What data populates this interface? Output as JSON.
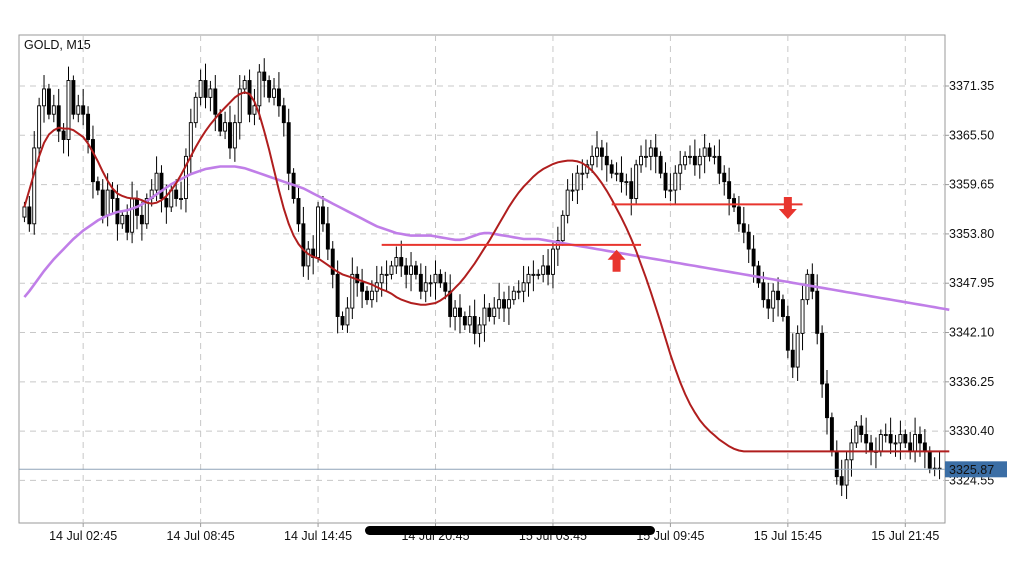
{
  "chart_data": {
    "type": "candlestick",
    "title": "GOLD, M15",
    "ylim": [
      3319.5,
      3377.4
    ],
    "y_ticks": [
      3371.35,
      3365.5,
      3359.65,
      3353.8,
      3347.95,
      3342.1,
      3336.25,
      3330.4,
      3324.55
    ],
    "y_tick_labels": [
      "3371.35",
      "3365.50",
      "3359.65",
      "3353.80",
      "3347.95",
      "3342.10",
      "3336.25",
      "3330.40",
      "3324.55"
    ],
    "x_tick_labels": [
      "14 Jul 02:45",
      "14 Jul 08:45",
      "14 Jul 14:45",
      "14 Jul 20:45",
      "15 Jul 03:45",
      "15 Jul 09:45",
      "15 Jul 15:45",
      "15 Jul 21:45"
    ],
    "x_tick_bars": [
      12,
      36,
      60,
      84,
      108,
      132,
      156,
      180
    ],
    "current_price": 3325.87,
    "current_price_label": "3325.87",
    "grid": true,
    "colors": {
      "bull_body": "#ffffff",
      "bear_body": "#000000",
      "candle_outline": "#000000",
      "ma_fast": "#b01e1e",
      "ma_slow": "#c07ee8",
      "level_lines": "#e8352e",
      "signal_arrows": "#e8352e",
      "price_line": "#8fa3b8",
      "price_label_bg": "#3b6ea5",
      "price_label_text": "#ffffff"
    },
    "close": [
      3357,
      3355,
      3364,
      3369,
      3371,
      3368,
      3369,
      3366,
      3365,
      3372,
      3368,
      3369,
      3368,
      3365,
      3360,
      3359,
      3356,
      3359,
      3358,
      3355,
      3356,
      3354,
      3358,
      3356,
      3355,
      3358,
      3359,
      3361,
      3358,
      3357,
      3359,
      3358,
      3358,
      3363,
      3367,
      3370,
      3372,
      3370,
      3371,
      3368,
      3366,
      3367,
      3364,
      3367,
      3371,
      3372,
      3368,
      3369,
      3373,
      3372,
      3370,
      3371,
      3369,
      3367,
      3361,
      3358,
      3355,
      3350,
      3352,
      3351,
      3357,
      3355,
      3352,
      3349,
      3344,
      3343,
      3345,
      3349,
      3348,
      3347,
      3346,
      3347,
      3348,
      3349,
      3349,
      3350,
      3351,
      3350,
      3349,
      3350,
      3349,
      3347,
      3348,
      3348,
      3349,
      3348,
      3347,
      3344,
      3345,
      3344,
      3343,
      3344,
      3342,
      3343,
      3345,
      3344,
      3345,
      3346,
      3345,
      3346,
      3347,
      3347,
      3348,
      3349,
      3349,
      3349,
      3350,
      3349,
      3352,
      3353,
      3356,
      3359,
      3359,
      3361,
      3361,
      3362,
      3363,
      3364,
      3363,
      3362,
      3361,
      3361,
      3360,
      3360,
      3358,
      3362,
      3363,
      3363,
      3364,
      3363,
      3361,
      3359,
      3359,
      3361,
      3362,
      3363,
      3363,
      3362,
      3363,
      3364,
      3363,
      3363,
      3361,
      3360,
      3358,
      3357,
      3355,
      3354,
      3352,
      3350,
      3348,
      3346,
      3345,
      3347,
      3346,
      3344,
      3340,
      3338,
      3342,
      3346,
      3349,
      3347,
      3342,
      3336,
      3332,
      3328,
      3325,
      3324,
      3327,
      3329,
      3331,
      3330,
      3329,
      3328,
      3328,
      3330,
      3330,
      3329,
      3329,
      3330,
      3329,
      3328,
      3330,
      3329,
      3328,
      3326,
      3326,
      3326
    ],
    "ma_fast": [
      3357,
      3359,
      3361,
      3363,
      3364.6,
      3365.6,
      3366.1,
      3366.4,
      3366.3,
      3366.3,
      3366.1,
      3365.7,
      3365.3,
      3364.5,
      3363.5,
      3362.4,
      3361.2,
      3360.1,
      3359.2,
      3358.6,
      3358.3,
      3358.1,
      3358,
      3358,
      3357.8,
      3357.5,
      3357.4,
      3357.5,
      3357.8,
      3358.3,
      3359,
      3359.8,
      3360.8,
      3361.9,
      3363,
      3364.1,
      3365.1,
      3366,
      3366.8,
      3367.5,
      3368.2,
      3368.8,
      3369.4,
      3370,
      3370.4,
      3370.6,
      3370.4,
      3369.5,
      3368,
      3366,
      3363.8,
      3361.4,
      3359,
      3356.8,
      3355,
      3353.6,
      3352.6,
      3351.9,
      3351.4,
      3351.1,
      3350.9,
      3350.5,
      3350.1,
      3349.7,
      3349.3,
      3349,
      3348.8,
      3348.6,
      3348.4,
      3348.2,
      3348,
      3347.8,
      3347.5,
      3347.2,
      3347,
      3346.7,
      3346.3,
      3346,
      3345.8,
      3345.6,
      3345.5,
      3345.4,
      3345.4,
      3345.5,
      3345.6,
      3345.9,
      3346.3,
      3346.8,
      3347.4,
      3348,
      3348.7,
      3349.5,
      3350.3,
      3351.2,
      3352.1,
      3353,
      3354,
      3355,
      3356,
      3357,
      3357.9,
      3358.7,
      3359.4,
      3360,
      3360.6,
      3361.1,
      3361.5,
      3361.8,
      3362.1,
      3362.3,
      3362.4,
      3362.5,
      3362.5,
      3362.4,
      3362.2,
      3361.8,
      3361.3,
      3360.6,
      3359.8,
      3358.9,
      3357.9,
      3356.8,
      3355.7,
      3354.5,
      3353.2,
      3351.8,
      3350.2,
      3348.6,
      3346.9,
      3345.1,
      3343.3,
      3341.4,
      3339.5,
      3337.8,
      3336.2,
      3334.8,
      3333.6,
      3332.6,
      3331.7,
      3331,
      3330.4,
      3329.9,
      3329.4,
      3329,
      3328.6,
      3328.3,
      3328.1,
      3328,
      3328,
      3328,
      3328,
      3328,
      3328,
      3328,
      3328,
      3328,
      3328,
      3328,
      3328,
      3328,
      3328,
      3328,
      3328,
      3328,
      3328,
      3328,
      3328,
      3328,
      3328,
      3328,
      3328,
      3328,
      3328,
      3328,
      3328,
      3328,
      3328,
      3328,
      3328,
      3328,
      3328,
      3328,
      3328,
      3328,
      3328,
      3328,
      3328,
      3328,
      3328,
      3328
    ],
    "ma_slow": [
      3346.3,
      3347,
      3347.8,
      3348.6,
      3349.4,
      3350.1,
      3350.8,
      3351.4,
      3352,
      3352.6,
      3353.2,
      3353.7,
      3354.2,
      3354.6,
      3355,
      3355.4,
      3355.7,
      3356,
      3356.2,
      3356.4,
      3356.5,
      3356.6,
      3356.8,
      3357,
      3357.3,
      3357.7,
      3358.1,
      3358.5,
      3358.9,
      3359.3,
      3359.7,
      3360,
      3360.3,
      3360.6,
      3360.9,
      3361.1,
      3361.3,
      3361.5,
      3361.6,
      3361.7,
      3361.8,
      3361.8,
      3361.8,
      3361.8,
      3361.7,
      3361.6,
      3361.4,
      3361.2,
      3361,
      3360.8,
      3360.6,
      3360.4,
      3360.2,
      3360,
      3359.8,
      3359.6,
      3359.4,
      3359.2,
      3358.9,
      3358.6,
      3358.3,
      3358,
      3357.7,
      3357.4,
      3357.1,
      3356.8,
      3356.5,
      3356.2,
      3355.9,
      3355.6,
      3355.3,
      3355,
      3354.7,
      3354.5,
      3354.3,
      3354.1,
      3353.9,
      3353.8,
      3353.7,
      3353.6,
      3353.6,
      3353.6,
      3353.6,
      3353.6,
      3353.5,
      3353.4,
      3353.3,
      3353.2,
      3353.1,
      3353.1,
      3353.2,
      3353.4,
      3353.6,
      3353.8,
      3353.9,
      3353.9,
      3353.8,
      3353.7,
      3353.6,
      3353.5,
      3353.4,
      3353.3,
      3353.2,
      3353.2,
      3353.2,
      3353.2,
      3353.1,
      3353,
      3352.9,
      3352.8,
      3352.7,
      3352.6,
      3352.5,
      3352.4,
      3352.3,
      3352.2,
      3352.1,
      3352,
      3351.9,
      3351.8,
      3351.7,
      3351.6,
      3351.5,
      3351.4,
      3351.3,
      3351.2,
      3351.1,
      3351,
      3350.9,
      3350.8,
      3350.7,
      3350.6,
      3350.5,
      3350.4,
      3350.3,
      3350.2,
      3350.1,
      3350,
      3349.9,
      3349.8,
      3349.7,
      3349.6,
      3349.5,
      3349.4,
      3349.3,
      3349.2,
      3349.1,
      3349,
      3348.9,
      3348.8,
      3348.7,
      3348.6,
      3348.5,
      3348.4,
      3348.3,
      3348.2,
      3348.1,
      3348,
      3347.9,
      3347.8,
      3347.7,
      3347.6,
      3347.5,
      3347.4,
      3347.3,
      3347.2,
      3347.1,
      3347,
      3346.9,
      3346.8,
      3346.7,
      3346.6,
      3346.5,
      3346.4,
      3346.3,
      3346.2,
      3346.1,
      3346,
      3345.9,
      3345.8,
      3345.7,
      3345.6,
      3345.5,
      3345.4,
      3345.3,
      3345.2,
      3345.1,
      3345,
      3344.9,
      3344.8
    ],
    "level_lines": [
      {
        "price": 3352.5,
        "from_bar": 73,
        "to_bar": 126
      },
      {
        "price": 3357.3,
        "from_bar": 120,
        "to_bar": 159
      }
    ],
    "signal_arrows": [
      {
        "direction": "up",
        "bar": 121,
        "price": 3350.5
      },
      {
        "direction": "down",
        "bar": 156,
        "price": 3357.0
      }
    ]
  }
}
